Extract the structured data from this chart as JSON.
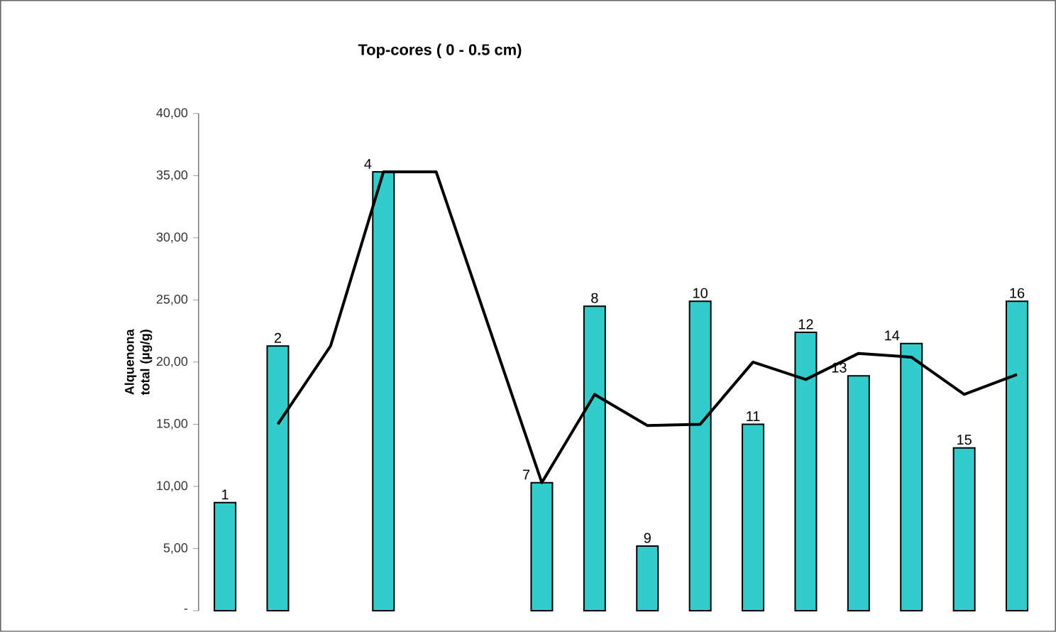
{
  "chart_data": {
    "type": "bar",
    "title": "Top-cores ( 0 - 0.5 cm)",
    "ylabel": "Alquenona total (µg/g)",
    "categories": [
      "1",
      "2",
      null,
      "4",
      null,
      null,
      "7",
      "8",
      "9",
      "10",
      "11",
      "12",
      "13",
      "14",
      "15",
      "16"
    ],
    "series": [
      {
        "color": "#33cccc",
        "values": [
          8.7,
          21.3,
          null,
          35.3,
          null,
          null,
          10.3,
          24.5,
          5.2,
          24.9,
          15.0,
          22.4,
          18.9,
          21.5,
          13.1,
          24.9
        ]
      },
      {
        "type": "line",
        "color": "#000000",
        "values": [
          null,
          15.0,
          21.3,
          35.3,
          35.3,
          null,
          10.3,
          17.4,
          14.9,
          15.0,
          20.0,
          18.6,
          20.7,
          20.4,
          17.4,
          19.0
        ]
      }
    ],
    "ylim": [
      0,
      40
    ],
    "yticks": [
      {
        "value": 0,
        "label": "-"
      },
      {
        "value": 5,
        "label": "5,00"
      },
      {
        "value": 10,
        "label": "10,00"
      },
      {
        "value": 15,
        "label": "15,00"
      },
      {
        "value": 20,
        "label": "20,00"
      },
      {
        "value": 25,
        "label": "25,00"
      },
      {
        "value": 30,
        "label": "30,00"
      },
      {
        "value": 35,
        "label": "35,00"
      },
      {
        "value": 40,
        "label": "40,00"
      }
    ]
  }
}
